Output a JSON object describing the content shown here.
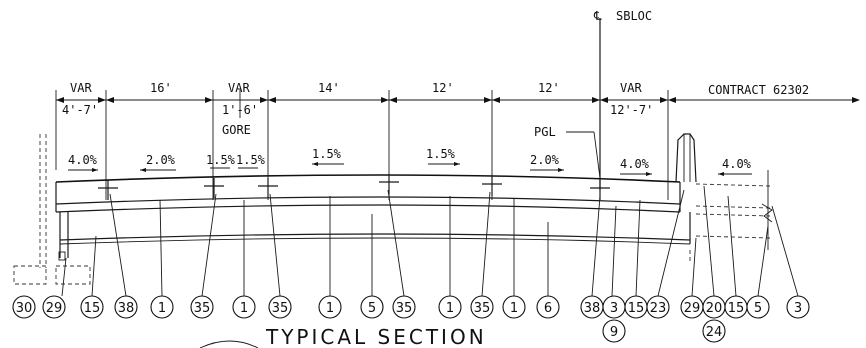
{
  "centerline": {
    "symbol": "℄",
    "label": "SBLOC"
  },
  "contract_label": "CONTRACT 62302",
  "dimensions": [
    {
      "text": "VAR"
    },
    {
      "text": "4'-7'"
    },
    {
      "text": "16'"
    },
    {
      "text": "VAR"
    },
    {
      "text": "1'-6'"
    },
    {
      "text": "GORE"
    },
    {
      "text": "14'"
    },
    {
      "text": "12'"
    },
    {
      "text": "12'"
    },
    {
      "text": "VAR"
    },
    {
      "text": "12'-7'"
    }
  ],
  "slopes": [
    {
      "text": "4.0%"
    },
    {
      "text": "2.0%"
    },
    {
      "text": "1.5%"
    },
    {
      "text": "1.5%"
    },
    {
      "text": "1.5%"
    },
    {
      "text": "1.5%"
    },
    {
      "text": "2.0%"
    },
    {
      "text": "4.0%"
    },
    {
      "text": "4.0%"
    }
  ],
  "pgl_label": "PGL",
  "callouts": [
    "30",
    "29",
    "15",
    "38",
    "1",
    "35",
    "1",
    "35",
    "1",
    "5",
    "35",
    "1",
    "35",
    "1",
    "6",
    "38",
    "3",
    "15",
    "23",
    "29",
    "20",
    "15",
    "5",
    "3"
  ],
  "callouts_lower": [
    "9",
    "24"
  ],
  "title": "TYPICAL SECTION"
}
